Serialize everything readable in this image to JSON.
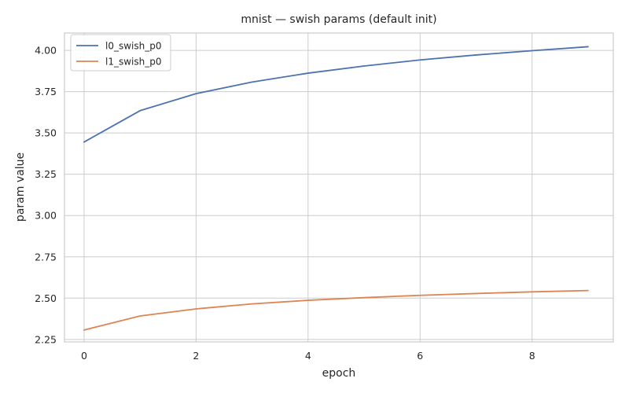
{
  "chart_data": {
    "type": "line",
    "title": "mnist — swish params (default init)",
    "xlabel": "epoch",
    "ylabel": "param value",
    "x": [
      0,
      1,
      2,
      3,
      4,
      5,
      6,
      7,
      8,
      9
    ],
    "xlim": [
      -0.35,
      9.45
    ],
    "ylim": [
      2.235,
      4.105
    ],
    "xticks": [
      0,
      2,
      4,
      6,
      8
    ],
    "yticks": [
      2.25,
      2.5,
      2.75,
      3.0,
      3.25,
      3.5,
      3.75,
      4.0
    ],
    "ytick_labels": [
      "2.25",
      "2.50",
      "2.75",
      "3.00",
      "3.25",
      "3.50",
      "3.75",
      "4.00"
    ],
    "grid": true,
    "legend_position": "top-left",
    "series": [
      {
        "name": "l0_swish_p0",
        "color": "#4c72b0",
        "values": [
          3.445,
          3.635,
          3.738,
          3.808,
          3.862,
          3.905,
          3.942,
          3.972,
          3.998,
          4.022
        ]
      },
      {
        "name": "l1_swish_p0",
        "color": "#dd8452",
        "values": [
          2.307,
          2.392,
          2.435,
          2.465,
          2.487,
          2.503,
          2.517,
          2.528,
          2.538,
          2.546
        ]
      }
    ]
  }
}
